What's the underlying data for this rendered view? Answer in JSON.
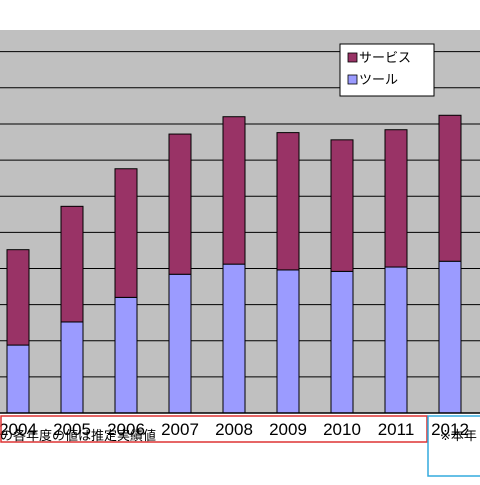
{
  "chart_data": {
    "type": "bar",
    "stacked": true,
    "categories": [
      "2004",
      "2005",
      "2006",
      "2007",
      "2008",
      "2009",
      "2010",
      "2011",
      "2012"
    ],
    "series": [
      {
        "name": "ツール",
        "color": "#9b9bff",
        "values": [
          47,
          63,
          80,
          96,
          103,
          99,
          98,
          101,
          105
        ]
      },
      {
        "name": "サービス",
        "color": "#993366",
        "values": [
          66,
          80,
          89,
          97,
          102,
          95,
          91,
          95,
          101
        ]
      }
    ],
    "ylim": [
      0,
      265
    ],
    "grid": true,
    "legend_position": "top-right",
    "plot_background": "#c0c0c0",
    "highlight_color": "#33aadd",
    "band_color": "#dd3333"
  },
  "footnotes": {
    "left": "の各年度の値は推定実績値",
    "right": "※本年"
  }
}
